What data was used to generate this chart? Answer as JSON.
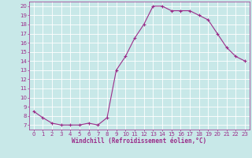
{
  "x": [
    0,
    1,
    2,
    3,
    4,
    5,
    6,
    7,
    8,
    9,
    10,
    11,
    12,
    13,
    14,
    15,
    16,
    17,
    18,
    19,
    20,
    21,
    22,
    23
  ],
  "y": [
    8.5,
    7.8,
    7.2,
    7.0,
    7.0,
    7.0,
    7.2,
    7.0,
    7.8,
    13.0,
    14.5,
    16.5,
    18.0,
    20.0,
    20.0,
    19.5,
    19.5,
    19.5,
    19.0,
    18.5,
    17.0,
    15.5,
    14.5,
    14.0
  ],
  "line_color": "#9b2d8a",
  "marker_color": "#9b2d8a",
  "bg_color": "#c8e8e8",
  "grid_color": "#ffffff",
  "xlabel": "Windchill (Refroidissement éolien,°C)",
  "xlabel_color": "#9b2d8a",
  "ylim": [
    6.5,
    20.5
  ],
  "xlim": [
    -0.5,
    23.5
  ],
  "yticks": [
    7,
    8,
    9,
    10,
    11,
    12,
    13,
    14,
    15,
    16,
    17,
    18,
    19,
    20
  ],
  "xticks": [
    0,
    1,
    2,
    3,
    4,
    5,
    6,
    7,
    8,
    9,
    10,
    11,
    12,
    13,
    14,
    15,
    16,
    17,
    18,
    19,
    20,
    21,
    22,
    23
  ],
  "tick_label_color": "#9b2d8a",
  "tick_fontsize": 5,
  "xlabel_fontsize": 5.5,
  "linewidth": 0.8,
  "markersize": 3
}
